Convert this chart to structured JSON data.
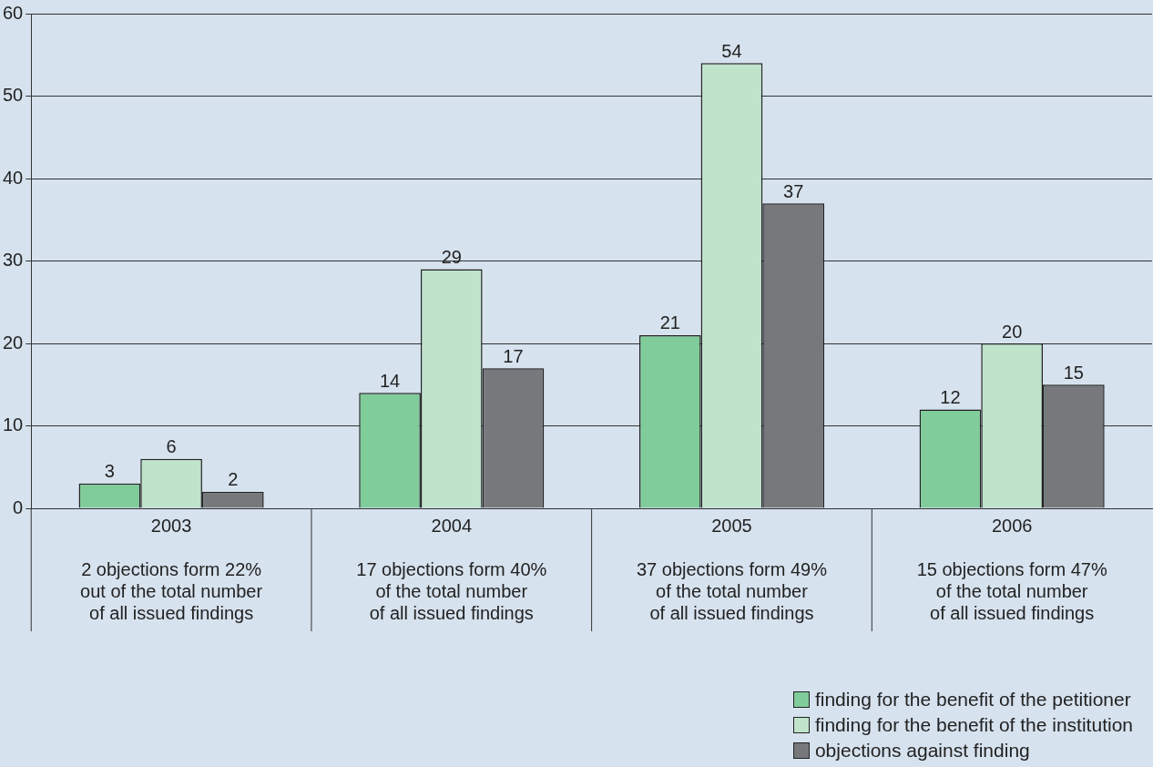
{
  "chart_data": {
    "type": "bar",
    "categories": [
      "2003",
      "2004",
      "2005",
      "2006"
    ],
    "series": [
      {
        "name": "finding for the benefit of the petitioner",
        "color": "#80cc9b",
        "values": [
          3,
          14,
          21,
          12
        ]
      },
      {
        "name": "finding for the benefit of the institution",
        "color": "#c0e3cb",
        "values": [
          6,
          29,
          54,
          20
        ]
      },
      {
        "name": "objections against finding",
        "color": "#77787b",
        "values": [
          2,
          17,
          37,
          15
        ]
      }
    ],
    "ylim": [
      0,
      60
    ],
    "yticks": [
      0,
      10,
      20,
      30,
      40,
      50,
      60
    ],
    "grid": "y",
    "data_labels": true,
    "legend": "bottom right",
    "annotations": [
      "2 objections form 22%\nout of the total number\nof all issued findings",
      "17 objections form 40%\nof the total number\nof all issued findings",
      "37 objections form 49%\nof the total number\nof all issued findings",
      "15 objections form 47%\nof the total number\nof all issued findings"
    ]
  }
}
